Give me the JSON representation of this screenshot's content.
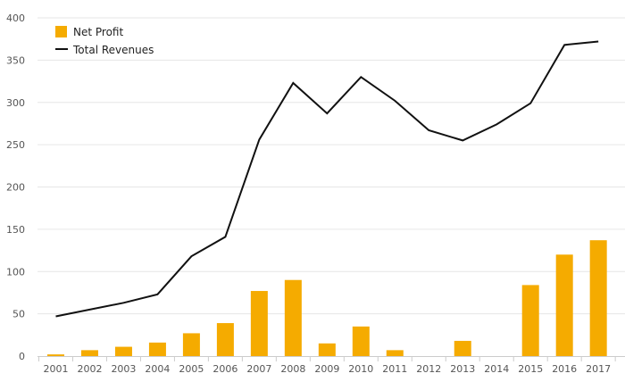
{
  "chart_data": {
    "type": "bar",
    "categories": [
      "2001",
      "2002",
      "2003",
      "2004",
      "2005",
      "2006",
      "2007",
      "2008",
      "2009",
      "2010",
      "2011",
      "2012",
      "2013",
      "2014",
      "2015",
      "2016",
      "2017"
    ],
    "series": [
      {
        "name": "Net Profit",
        "type": "bar",
        "color": "#f5ab00",
        "values": [
          2,
          7,
          11,
          16,
          27,
          39,
          77,
          90,
          15,
          35,
          7,
          0,
          18,
          0,
          84,
          120,
          137
        ]
      },
      {
        "name": "Total Revenues",
        "type": "line",
        "color": "#111111",
        "values": [
          47,
          55,
          63,
          73,
          118,
          141,
          256,
          323,
          287,
          330,
          302,
          267,
          255,
          274,
          299,
          368,
          372
        ]
      }
    ],
    "ylim": [
      0,
      400
    ],
    "yticks": [
      0,
      50,
      100,
      150,
      200,
      250,
      300,
      350,
      400
    ],
    "grid": true,
    "legend_position": "top-left"
  }
}
